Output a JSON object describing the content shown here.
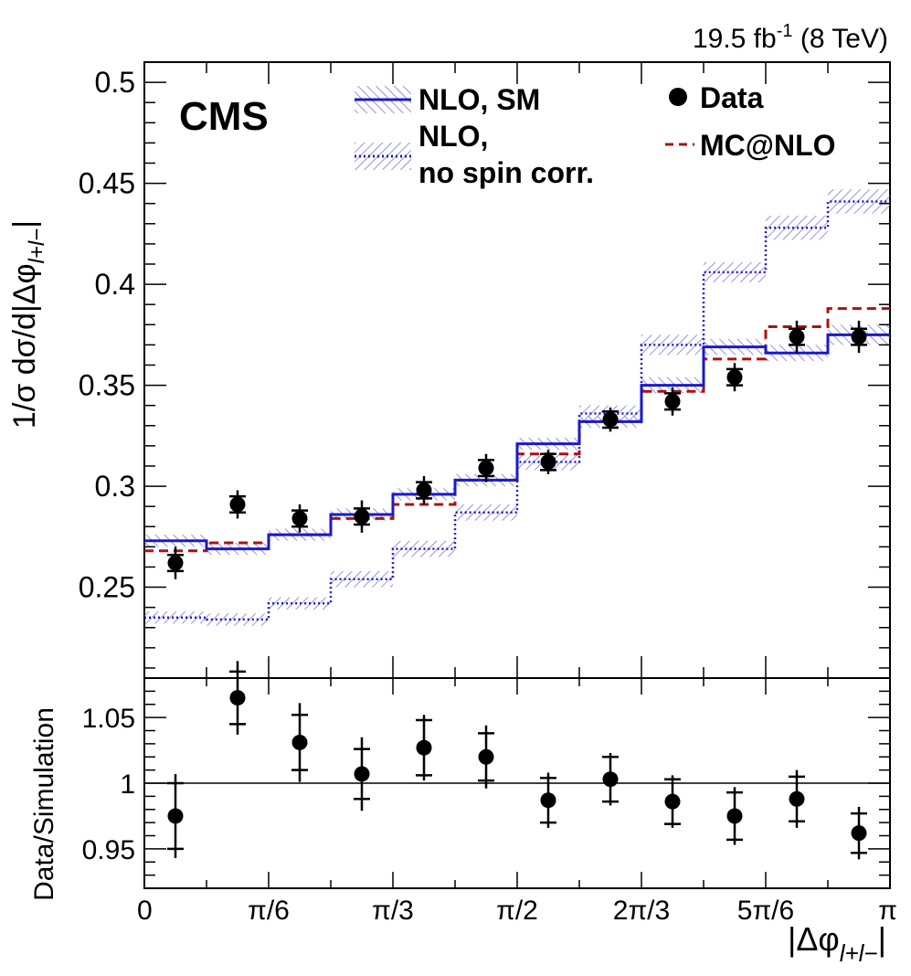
{
  "chart_data": {
    "type": "line",
    "lumi_label": "19.5 fb",
    "lumi_sup": "-1",
    "lumi_suffix": " (8 TeV)",
    "cms_label": "CMS",
    "top_panel": {
      "ylabel": "1/σ dσ/d|Δφ",
      "ylabel_sub": "l+l−",
      "ylabel_end": "|",
      "ylim": [
        0.205,
        0.51
      ],
      "yticks": [
        0.25,
        0.3,
        0.35,
        0.4,
        0.45,
        0.5
      ],
      "ytick_labels": [
        "0.25",
        "0.3",
        "0.35",
        "0.4",
        "0.45",
        "0.5"
      ]
    },
    "bottom_panel": {
      "ylabel": "Data/Simulation",
      "ylim": [
        0.92,
        1.08
      ],
      "yticks": [
        0.95,
        1.0,
        1.05
      ],
      "ytick_labels": [
        "0.95",
        "1",
        "1.05"
      ],
      "reference_line": 1.0
    },
    "xlabel": "|Δφ",
    "xlabel_sub": "l+l−",
    "xlabel_end": "|",
    "xlim": [
      0,
      12
    ],
    "xtick_positions": [
      0,
      2,
      4,
      6,
      8,
      10,
      12
    ],
    "xtick_labels": [
      "0",
      "π/6",
      "π/3",
      "π/2",
      "2π/3",
      "5π/6",
      "π"
    ],
    "bin_edges": [
      0,
      1,
      2,
      3,
      4,
      5,
      6,
      7,
      8,
      9,
      10,
      11,
      12
    ],
    "series": [
      {
        "name": "NLO, SM",
        "style": "solid",
        "color": "#1a1ac8",
        "values": [
          0.273,
          0.269,
          0.276,
          0.286,
          0.296,
          0.303,
          0.321,
          0.332,
          0.35,
          0.369,
          0.366,
          0.375
        ],
        "uncertainty": [
          0.003,
          0.003,
          0.003,
          0.003,
          0.003,
          0.003,
          0.003,
          0.003,
          0.004,
          0.004,
          0.004,
          0.005
        ]
      },
      {
        "name": "NLO, no spin corr.",
        "legend_line2": "no spin corr.",
        "legend_line1": "NLO,",
        "style": "dotted",
        "color": "#1a1ac8",
        "values": [
          0.235,
          0.234,
          0.242,
          0.254,
          0.269,
          0.287,
          0.312,
          0.336,
          0.37,
          0.406,
          0.428,
          0.441
        ],
        "uncertainty": [
          0.003,
          0.003,
          0.003,
          0.004,
          0.004,
          0.004,
          0.004,
          0.004,
          0.005,
          0.005,
          0.006,
          0.006
        ]
      },
      {
        "name": "MC@NLO",
        "style": "dashed",
        "color": "#b01010",
        "values": [
          0.268,
          0.272,
          0.276,
          0.284,
          0.291,
          0.303,
          0.316,
          0.332,
          0.347,
          0.363,
          0.379,
          0.388
        ]
      },
      {
        "name": "Data",
        "style": "markers",
        "color": "#000000",
        "x": [
          0.5,
          1.5,
          2.5,
          3.5,
          4.5,
          5.5,
          6.5,
          7.5,
          8.5,
          9.5,
          10.5,
          11.5
        ],
        "values": [
          0.262,
          0.291,
          0.284,
          0.285,
          0.298,
          0.309,
          0.312,
          0.333,
          0.342,
          0.354,
          0.374,
          0.374
        ],
        "err_stat": [
          0.004,
          0.004,
          0.004,
          0.004,
          0.004,
          0.004,
          0.004,
          0.004,
          0.004,
          0.004,
          0.004,
          0.004
        ],
        "err_total": [
          0.008,
          0.007,
          0.007,
          0.008,
          0.007,
          0.007,
          0.006,
          0.006,
          0.007,
          0.007,
          0.008,
          0.008
        ]
      }
    ],
    "ratio": {
      "x": [
        0.5,
        1.5,
        2.5,
        3.5,
        4.5,
        5.5,
        6.5,
        7.5,
        8.5,
        9.5,
        10.5,
        11.5
      ],
      "values": [
        0.975,
        1.065,
        1.031,
        1.007,
        1.027,
        1.02,
        0.987,
        1.003,
        0.986,
        0.975,
        0.988,
        0.962
      ],
      "err_stat": [
        0.025,
        0.02,
        0.021,
        0.019,
        0.021,
        0.018,
        0.017,
        0.017,
        0.017,
        0.018,
        0.017,
        0.015
      ],
      "err_total": [
        0.032,
        0.028,
        0.03,
        0.028,
        0.025,
        0.024,
        0.021,
        0.02,
        0.02,
        0.022,
        0.022,
        0.02
      ]
    }
  }
}
